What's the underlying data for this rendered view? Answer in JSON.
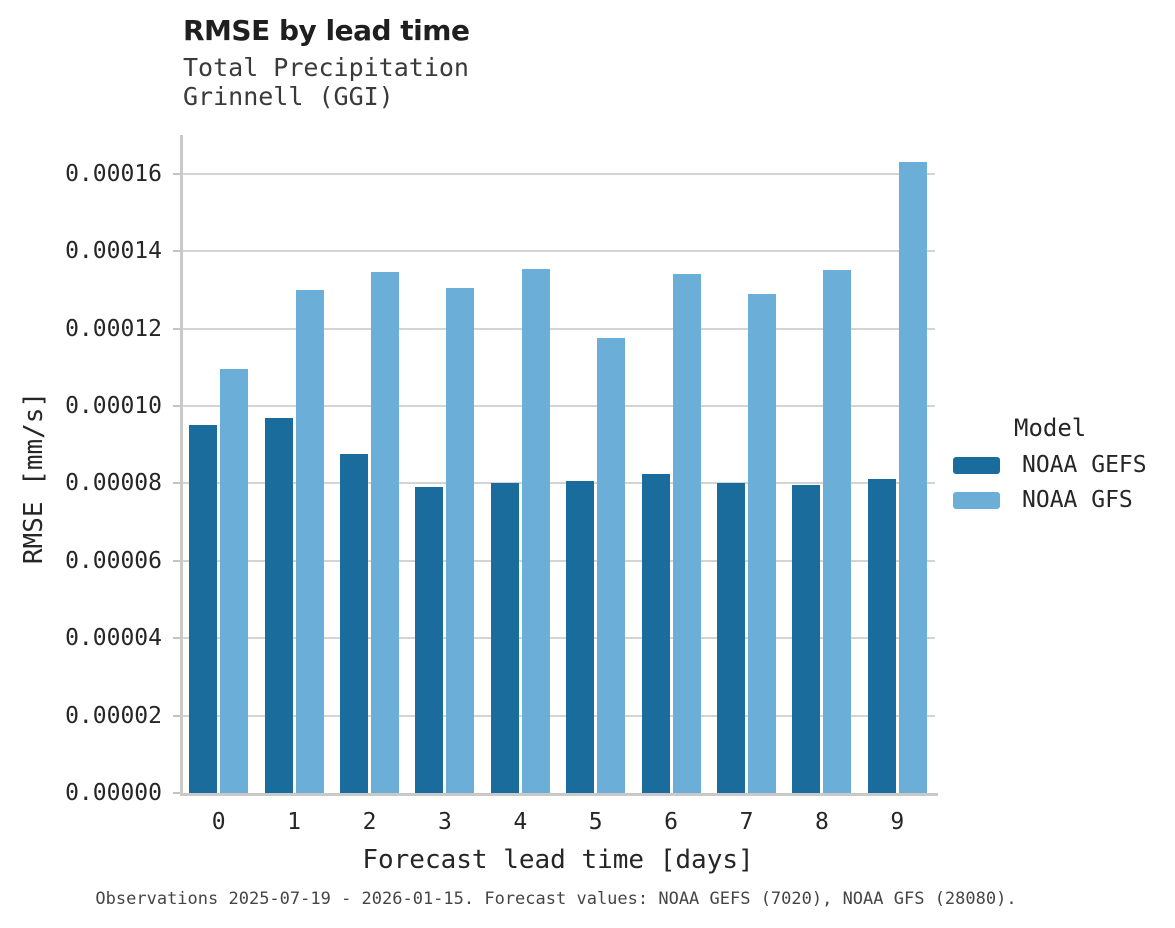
{
  "chart_data": {
    "type": "bar",
    "title": "RMSE by lead time",
    "subtitle": [
      "Total Precipitation",
      "Grinnell (GGI)"
    ],
    "xlabel": "Forecast lead time [days]",
    "ylabel": "RMSE [mm/s]",
    "categories": [
      "0",
      "1",
      "2",
      "3",
      "4",
      "5",
      "6",
      "7",
      "8",
      "9"
    ],
    "series": [
      {
        "name": "NOAA GEFS",
        "color": "#1a6c9d",
        "values": [
          9.5e-05,
          9.7e-05,
          8.75e-05,
          7.9e-05,
          8e-05,
          8.05e-05,
          8.25e-05,
          8e-05,
          7.95e-05,
          8.1e-05
        ]
      },
      {
        "name": "NOAA GFS",
        "color": "#6bafd8",
        "values": [
          0.0001095,
          0.00013,
          0.0001345,
          0.0001305,
          0.0001355,
          0.0001175,
          0.000134,
          0.000129,
          0.000135,
          0.000163
        ]
      }
    ],
    "ylim": [
      0,
      0.00017
    ],
    "yticks": [
      0,
      2e-05,
      4e-05,
      6e-05,
      8e-05,
      0.0001,
      0.00012,
      0.00014,
      0.00016
    ],
    "ytick_labels": [
      "0.00000",
      "0.00002",
      "0.00004",
      "0.00006",
      "0.00008",
      "0.00010",
      "0.00012",
      "0.00014",
      "0.00016"
    ],
    "legend_title": "Model",
    "legend_position": "right",
    "grid": true
  },
  "caption": {
    "text": "Observations 2025-07-19 - 2026-01-15. Forecast values: NOAA GEFS (7020), NOAA GFS (28080)."
  }
}
